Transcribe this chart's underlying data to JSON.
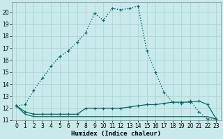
{
  "title": "",
  "xlabel": "Humidex (Indice chaleur)",
  "ylabel": "",
  "background_color": "#c8eaea",
  "grid_color": "#b0d4d4",
  "line_color": "#006868",
  "series": [
    {
      "x": [
        0,
        1,
        2,
        3,
        4,
        5,
        6,
        7,
        8,
        9,
        10,
        11,
        12,
        13,
        14,
        15,
        16,
        17,
        18,
        19,
        20,
        21,
        22,
        23
      ],
      "y": [
        12.2,
        12.3,
        13.5,
        14.5,
        15.5,
        16.3,
        16.8,
        17.5,
        18.3,
        19.9,
        19.3,
        20.3,
        20.2,
        20.3,
        20.5,
        16.8,
        15.0,
        13.3,
        12.5,
        12.4,
        12.6,
        11.7,
        11.1,
        11.1
      ],
      "style": "dotted"
    },
    {
      "x": [
        0,
        1,
        2,
        3,
        4,
        5,
        6,
        7,
        8,
        9,
        10,
        11,
        12,
        13,
        14,
        15,
        16,
        17,
        18,
        19,
        20,
        21,
        22,
        23
      ],
      "y": [
        12.2,
        11.7,
        11.5,
        11.5,
        11.5,
        11.5,
        11.5,
        11.5,
        12.0,
        12.0,
        12.0,
        12.0,
        12.0,
        12.1,
        12.2,
        12.3,
        12.3,
        12.4,
        12.5,
        12.5,
        12.5,
        12.6,
        12.3,
        11.1
      ],
      "style": "solid_markers"
    },
    {
      "x": [
        0,
        1,
        2,
        3,
        4,
        5,
        6,
        7,
        8,
        9,
        10,
        11,
        12,
        13,
        14,
        15,
        16,
        17,
        18,
        19,
        20,
        21,
        22,
        23
      ],
      "y": [
        12.2,
        11.5,
        11.3,
        11.3,
        11.3,
        11.3,
        11.3,
        11.3,
        11.3,
        11.3,
        11.3,
        11.3,
        11.3,
        11.3,
        11.3,
        11.3,
        11.3,
        11.3,
        11.3,
        11.3,
        11.3,
        11.3,
        11.3,
        11.1
      ],
      "style": "solid_flat"
    }
  ],
  "xlim": [
    -0.5,
    23.5
  ],
  "ylim": [
    11,
    20.8
  ],
  "yticks": [
    11,
    12,
    13,
    14,
    15,
    16,
    17,
    18,
    19,
    20
  ],
  "xticks": [
    0,
    1,
    2,
    3,
    4,
    5,
    6,
    7,
    8,
    9,
    10,
    11,
    12,
    13,
    14,
    15,
    16,
    17,
    18,
    19,
    20,
    21,
    22,
    23
  ],
  "tick_fontsize": 5.5,
  "xlabel_fontsize": 6.5
}
